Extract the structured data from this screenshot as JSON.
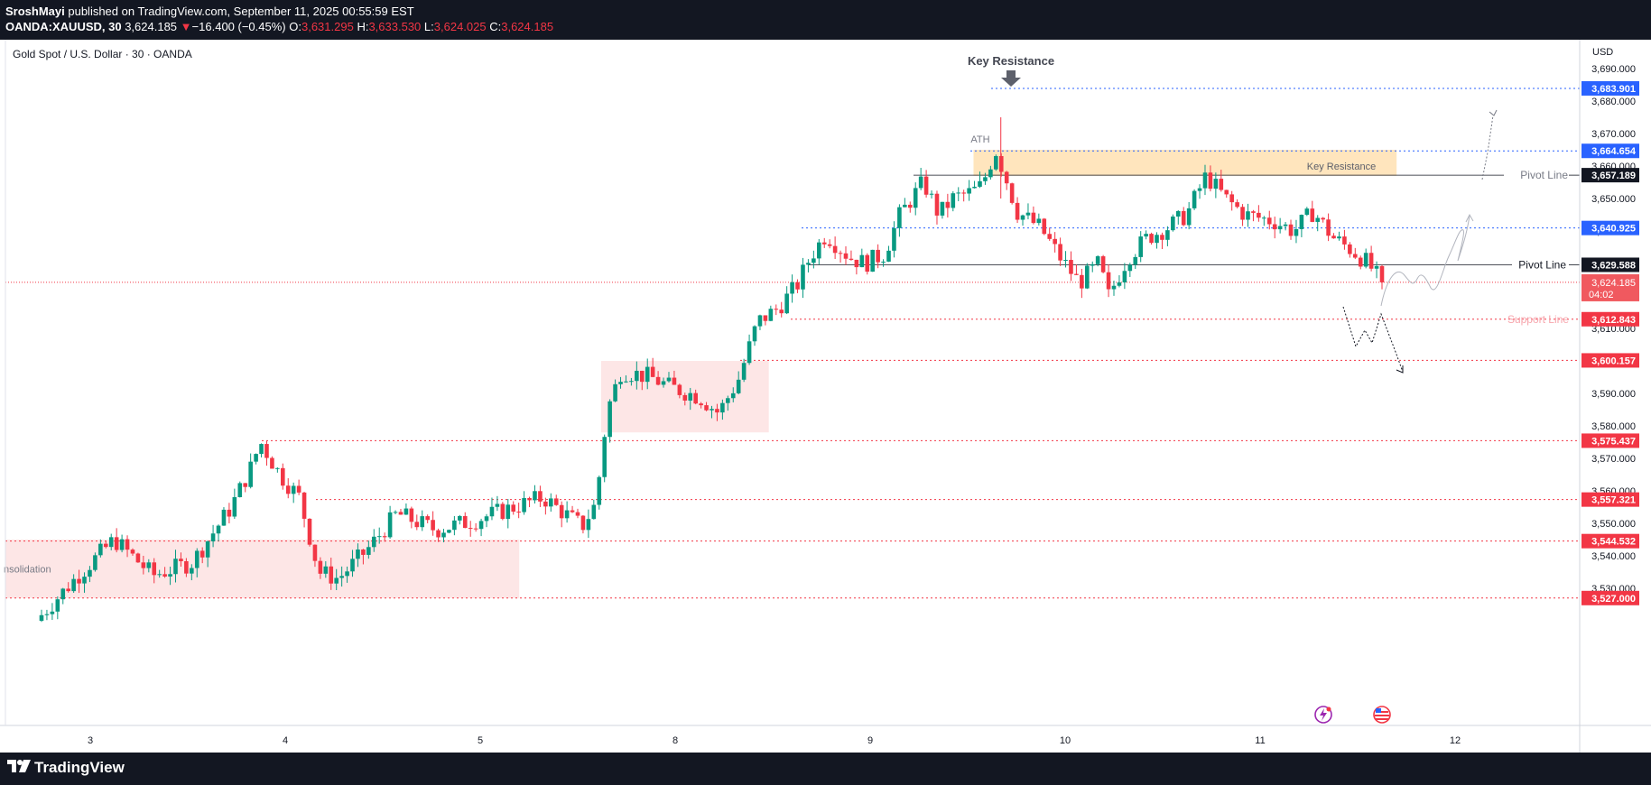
{
  "header": {
    "author": "SroshMayi",
    "published": " published on TradingView.com, September 11, 2025 00:55:59 EST",
    "symbol": "OANDA:XAUUSD, 30",
    "last": "3,624.185",
    "change": "−16.400 (−0.45%)",
    "o_label": "O:",
    "o": "3,631.295",
    "h_label": "H:",
    "h": "3,633.530",
    "l_label": "L:",
    "l": "3,624.025",
    "c_label": "C:",
    "c": "3,624.185"
  },
  "chart_title": "Gold Spot / U.S. Dollar · 30 · OANDA",
  "currency": "USD",
  "brand": "TradingView",
  "colors": {
    "up": "#089981",
    "down": "#f23645",
    "level": "#f23645",
    "blue": "#2962ff",
    "zone_orange": "#ffe0b2",
    "zone_red": "#fde0e0"
  },
  "chart_data": {
    "type": "candlestick",
    "title": "Gold Spot / U.S. Dollar · 30 · OANDA",
    "ylabel": "USD",
    "ylim": [
      3520,
      3697
    ],
    "y_ticks": [
      3530,
      3540,
      3550,
      3560,
      3570,
      3580,
      3590,
      3600,
      3610,
      3620,
      3630,
      3640,
      3650,
      3660,
      3670,
      3680,
      3690
    ],
    "y_tick_labels": [
      "3,530.000",
      "3,540.000",
      "3,550.000",
      "3,560.000",
      "3,570.000",
      "3,580.000",
      "3,590.000",
      "3,600.000",
      "3,610.000",
      "3,620.000",
      "3,630.000",
      "3,640.000",
      "3,650.000",
      "3,660.000",
      "3,670.000",
      "3,680.000",
      "3,690.000"
    ],
    "x_tick_labels": [
      "3",
      "4",
      "5",
      "8",
      "9",
      "10",
      "11",
      "12"
    ],
    "price_path": [
      [
        2.75,
        3520
      ],
      [
        2.95,
        3533
      ],
      [
        3.15,
        3545
      ],
      [
        3.35,
        3534
      ],
      [
        3.55,
        3538
      ],
      [
        3.75,
        3555
      ],
      [
        3.85,
        3567
      ],
      [
        3.9,
        3575
      ],
      [
        4.0,
        3565
      ],
      [
        4.1,
        3558
      ],
      [
        4.2,
        3535
      ],
      [
        4.3,
        3533
      ],
      [
        4.45,
        3542
      ],
      [
        4.6,
        3553
      ],
      [
        4.8,
        3548
      ],
      [
        5.0,
        3551
      ],
      [
        5.2,
        3555
      ],
      [
        5.35,
        3558
      ],
      [
        5.55,
        3549
      ],
      [
        5.62,
        3556
      ],
      [
        5.68,
        3585
      ],
      [
        5.75,
        3597
      ],
      [
        5.9,
        3595
      ],
      [
        6.0,
        3592
      ],
      [
        6.15,
        3589
      ],
      [
        6.25,
        3584
      ],
      [
        6.35,
        3594
      ],
      [
        6.45,
        3612
      ],
      [
        6.55,
        3616
      ],
      [
        6.65,
        3623
      ],
      [
        6.72,
        3632
      ],
      [
        6.8,
        3639
      ],
      [
        6.92,
        3632
      ],
      [
        7.0,
        3630
      ],
      [
        7.1,
        3633
      ],
      [
        7.18,
        3645
      ],
      [
        7.3,
        3655
      ],
      [
        7.38,
        3645
      ],
      [
        7.45,
        3650
      ],
      [
        7.55,
        3652
      ],
      [
        7.6,
        3654
      ],
      [
        7.67,
        3665
      ],
      [
        7.72,
        3657
      ],
      [
        7.78,
        3646
      ],
      [
        7.9,
        3641
      ],
      [
        8.0,
        3632
      ],
      [
        8.1,
        3624
      ],
      [
        8.2,
        3630
      ],
      [
        8.25,
        3620
      ],
      [
        8.35,
        3632
      ],
      [
        8.45,
        3638
      ],
      [
        8.55,
        3641
      ],
      [
        8.65,
        3645
      ],
      [
        8.75,
        3657
      ],
      [
        8.85,
        3650
      ],
      [
        8.95,
        3645
      ],
      [
        9.1,
        3643
      ],
      [
        9.2,
        3640
      ],
      [
        9.3,
        3646
      ],
      [
        9.4,
        3638
      ],
      [
        9.5,
        3634
      ],
      [
        9.58,
        3630
      ],
      [
        9.65,
        3624.185
      ]
    ],
    "last_price": "3,624.185",
    "countdown": "04:02",
    "levels": [
      {
        "price": 3683.901,
        "label": "3,683.901",
        "style": "blue-dotted"
      },
      {
        "price": 3664.654,
        "label": "3,664.654",
        "style": "blue-dotted"
      },
      {
        "price": 3657.189,
        "label": "3,657.189",
        "style": "pivot",
        "name": "Pivot Line"
      },
      {
        "price": 3640.925,
        "label": "3,640.925",
        "style": "blue-dotted"
      },
      {
        "price": 3629.588,
        "label": "3,629.588",
        "style": "pivot",
        "name": "Pivot Line"
      },
      {
        "price": 3612.843,
        "label": "3,612.843",
        "style": "red-dotted",
        "name": "Support Line"
      },
      {
        "price": 3600.157,
        "label": "3,600.157",
        "style": "red-dotted"
      },
      {
        "price": 3575.437,
        "label": "3,575.437",
        "style": "red-dotted"
      },
      {
        "price": 3557.321,
        "label": "3,557.321",
        "style": "red-dotted"
      },
      {
        "price": 3544.532,
        "label": "3,544.532",
        "style": "red-dotted"
      },
      {
        "price": 3527.0,
        "label": "3,527.000",
        "style": "red-dotted"
      }
    ],
    "zones": [
      {
        "from_day": 2.6,
        "to_day": 5.2,
        "low": 3527,
        "high": 3545,
        "color": "red",
        "label": "nsolidation"
      },
      {
        "from_day": 5.62,
        "to_day": 6.48,
        "low": 3578,
        "high": 3600,
        "color": "red"
      },
      {
        "from_day": 7.53,
        "to_day": 9.7,
        "low": 3657,
        "high": 3665,
        "color": "orange"
      }
    ],
    "annotations": [
      {
        "text": "Key Resistance",
        "kind": "arrow-down"
      },
      {
        "text": "ATH"
      },
      {
        "text": "Key Resistance"
      }
    ]
  }
}
